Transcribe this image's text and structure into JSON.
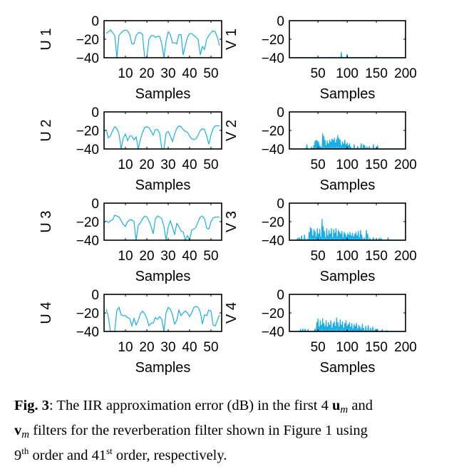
{
  "chart_data": [
    {
      "type": "line",
      "ylabel": "U 1",
      "xlabel": "Samples",
      "xlim": [
        0,
        55
      ],
      "ylim": [
        -40,
        0
      ],
      "xticks": [
        10,
        20,
        30,
        40,
        50
      ],
      "yticks": [
        0,
        -20,
        -40
      ],
      "color": "#1aaee5",
      "x_start": 1,
      "values": [
        -14,
        -12,
        -10,
        -13,
        -16,
        -40,
        -16,
        -13,
        -11,
        -10,
        -11,
        -15,
        -25,
        -25,
        -16,
        -13,
        -13,
        -15,
        -40,
        -40,
        -20,
        -16,
        -16,
        -18,
        -17,
        -17,
        -25,
        -40,
        -22,
        -12,
        -15,
        -24,
        -24,
        -25,
        -15,
        -15,
        -37,
        -27,
        -18,
        -14,
        -14,
        -16,
        -18,
        -20,
        -37,
        -28,
        -31,
        -20,
        -16,
        -13,
        -11,
        -12,
        -18,
        -27
      ]
    },
    {
      "type": "line",
      "ylabel": "V 1",
      "xlabel": "Samples",
      "xlim": [
        1,
        200
      ],
      "ylim": [
        -40,
        0
      ],
      "xticks": [
        50,
        100,
        150,
        200
      ],
      "yticks": [
        0,
        -20,
        -40
      ],
      "color": "#1aaee5",
      "points": [
        [
          90,
          -34
        ],
        [
          100,
          -36
        ]
      ]
    },
    {
      "type": "line",
      "ylabel": "U 2",
      "xlabel": "Samples",
      "xlim": [
        0,
        55
      ],
      "ylim": [
        -40,
        0
      ],
      "xticks": [
        10,
        20,
        30,
        40,
        50
      ],
      "yticks": [
        0,
        -20,
        -40
      ],
      "color": "#1aaee5",
      "x_start": 1,
      "values": [
        -19,
        -28,
        -26,
        -20,
        -16,
        -18,
        -24,
        -40,
        -28,
        -24,
        -31,
        -26,
        -26,
        -30,
        -27,
        -40,
        -30,
        -22,
        -17,
        -16,
        -17,
        -21,
        -25,
        -19,
        -19,
        -23,
        -40,
        -40,
        -23,
        -21,
        -26,
        -32,
        -24,
        -18,
        -15,
        -16,
        -19,
        -21,
        -22,
        -26,
        -29,
        -30,
        -29,
        -25,
        -20,
        -18,
        -19,
        -26,
        -35,
        -25,
        -18,
        -15,
        -15,
        -15
      ]
    },
    {
      "type": "line",
      "ylabel": "V 2",
      "xlabel": "Samples",
      "xlim": [
        1,
        200
      ],
      "ylim": [
        -40,
        0
      ],
      "xticks": [
        50,
        100,
        150,
        200
      ],
      "yticks": [
        0,
        -20,
        -40
      ],
      "color": "#1aaee5",
      "points": [
        [
          31,
          -35
        ],
        [
          39,
          -38
        ],
        [
          43,
          -36
        ],
        [
          45,
          -31
        ],
        [
          47,
          -30
        ],
        [
          49,
          -31
        ],
        [
          51,
          -32
        ],
        [
          53,
          -36
        ],
        [
          55,
          -38
        ],
        [
          58,
          -23
        ],
        [
          60,
          -26
        ],
        [
          62,
          -30
        ],
        [
          64,
          -36
        ],
        [
          66,
          -31
        ],
        [
          68,
          -34
        ],
        [
          70,
          -30
        ],
        [
          72,
          -32
        ],
        [
          74,
          -29
        ],
        [
          76,
          -30
        ],
        [
          78,
          -28
        ],
        [
          80,
          -33
        ],
        [
          82,
          -29
        ],
        [
          84,
          -25
        ],
        [
          86,
          -28
        ],
        [
          88,
          -30
        ],
        [
          90,
          -36
        ],
        [
          92,
          -32
        ],
        [
          94,
          -34
        ],
        [
          96,
          -30
        ],
        [
          98,
          -35
        ],
        [
          100,
          -33
        ],
        [
          102,
          -36
        ],
        [
          104,
          -34
        ],
        [
          106,
          -38
        ],
        [
          112,
          -35
        ],
        [
          118,
          -37
        ],
        [
          124,
          -34
        ],
        [
          128,
          -35
        ],
        [
          130,
          -36
        ],
        [
          134,
          -38
        ],
        [
          138,
          -37
        ],
        [
          145,
          -35
        ],
        [
          152,
          -36
        ]
      ]
    },
    {
      "type": "line",
      "ylabel": "U 3",
      "xlabel": "Samples",
      "xlim": [
        0,
        55
      ],
      "ylim": [
        -40,
        0
      ],
      "xticks": [
        10,
        20,
        30,
        40,
        50
      ],
      "yticks": [
        0,
        -20,
        -40
      ],
      "color": "#1aaee5",
      "x_start": 1,
      "values": [
        -19,
        -21,
        -19,
        -18,
        -13,
        -14,
        -15,
        -19,
        -23,
        -25,
        -20,
        -18,
        -18,
        -20,
        -40,
        -24,
        -21,
        -17,
        -14,
        -15,
        -19,
        -25,
        -33,
        -17,
        -14,
        -15,
        -17,
        -25,
        -40,
        -26,
        -19,
        -26,
        -34,
        -22,
        -25,
        -30,
        -31,
        -40,
        -35,
        -40,
        -29,
        -28,
        -26,
        -20,
        -15,
        -14,
        -17,
        -27,
        -28,
        -20,
        -16,
        -15,
        -15,
        -15
      ]
    },
    {
      "type": "line",
      "ylabel": "V 3",
      "xlabel": "Samples",
      "xlim": [
        1,
        200
      ],
      "ylim": [
        -40,
        0
      ],
      "xticks": [
        50,
        100,
        150,
        200
      ],
      "yticks": [
        0,
        -20,
        -40
      ],
      "color": "#1aaee5",
      "points": [
        [
          15,
          -38
        ],
        [
          18,
          -37
        ],
        [
          22,
          -35
        ],
        [
          27,
          -34
        ],
        [
          32,
          -39
        ],
        [
          35,
          -31
        ],
        [
          37,
          -26
        ],
        [
          39,
          -27
        ],
        [
          41,
          -35
        ],
        [
          43,
          -28
        ],
        [
          45,
          -30
        ],
        [
          47,
          -36
        ],
        [
          49,
          -27
        ],
        [
          51,
          -33
        ],
        [
          53,
          -28
        ],
        [
          55,
          -36
        ],
        [
          57,
          -17
        ],
        [
          59,
          -25
        ],
        [
          61,
          -30
        ],
        [
          63,
          -37
        ],
        [
          65,
          -27
        ],
        [
          67,
          -35
        ],
        [
          69,
          -29
        ],
        [
          71,
          -33
        ],
        [
          73,
          -27
        ],
        [
          75,
          -38
        ],
        [
          77,
          -28
        ],
        [
          79,
          -32
        ],
        [
          81,
          -27
        ],
        [
          83,
          -36
        ],
        [
          85,
          -29
        ],
        [
          87,
          -31
        ],
        [
          89,
          -33
        ],
        [
          91,
          -30
        ],
        [
          93,
          -37
        ],
        [
          95,
          -31
        ],
        [
          97,
          -33
        ],
        [
          99,
          -36
        ],
        [
          101,
          -32
        ],
        [
          103,
          -34
        ],
        [
          105,
          -31
        ],
        [
          107,
          -35
        ],
        [
          109,
          -32
        ],
        [
          111,
          -36
        ],
        [
          113,
          -33
        ],
        [
          115,
          -31
        ],
        [
          117,
          -35
        ],
        [
          119,
          -30
        ],
        [
          121,
          -38
        ],
        [
          123,
          -29
        ],
        [
          125,
          -34
        ],
        [
          129,
          -37
        ],
        [
          133,
          -29
        ],
        [
          135,
          -33
        ],
        [
          139,
          -38
        ],
        [
          145,
          -37
        ],
        [
          155,
          -38
        ],
        [
          158,
          -38
        ],
        [
          170,
          -37
        ]
      ]
    },
    {
      "type": "line",
      "ylabel": "U 4",
      "xlabel": "Samples",
      "xlim": [
        0,
        55
      ],
      "ylim": [
        -40,
        0
      ],
      "xticks": [
        10,
        20,
        30,
        40,
        50
      ],
      "yticks": [
        0,
        -20,
        -40
      ],
      "color": "#1aaee5",
      "x_start": 1,
      "values": [
        -16,
        -24,
        -40,
        -40,
        -40,
        -17,
        -14,
        -22,
        -23,
        -23,
        -25,
        -26,
        -34,
        -26,
        -33,
        -28,
        -21,
        -18,
        -21,
        -26,
        -34,
        -31,
        -31,
        -25,
        -27,
        -24,
        -27,
        -40,
        -20,
        -14,
        -16,
        -22,
        -32,
        -28,
        -17,
        -23,
        -20,
        -18,
        -20,
        -24,
        -20,
        -14,
        -13,
        -14,
        -19,
        -32,
        -22,
        -23,
        -17,
        -18,
        -33,
        -34,
        -28,
        -22
      ]
    },
    {
      "type": "line",
      "ylabel": "V 4",
      "xlabel": "Samples",
      "xlim": [
        1,
        200
      ],
      "ylim": [
        -40,
        0
      ],
      "xticks": [
        50,
        100,
        150,
        200
      ],
      "yticks": [
        0,
        -20,
        -40
      ],
      "color": "#1aaee5",
      "points": [
        [
          20,
          -38
        ],
        [
          24,
          -37
        ],
        [
          28,
          -37
        ],
        [
          33,
          -38
        ],
        [
          45,
          -37
        ],
        [
          48,
          -30
        ],
        [
          50,
          -26
        ],
        [
          52,
          -35
        ],
        [
          54,
          -28
        ],
        [
          56,
          -33
        ],
        [
          58,
          -26
        ],
        [
          60,
          -31
        ],
        [
          62,
          -34
        ],
        [
          64,
          -28
        ],
        [
          66,
          -35
        ],
        [
          68,
          -30
        ],
        [
          70,
          -33
        ],
        [
          72,
          -28
        ],
        [
          74,
          -36
        ],
        [
          76,
          -31
        ],
        [
          78,
          -29
        ],
        [
          80,
          -34
        ],
        [
          82,
          -25
        ],
        [
          84,
          -30
        ],
        [
          86,
          -35
        ],
        [
          88,
          -27
        ],
        [
          90,
          -33
        ],
        [
          92,
          -29
        ],
        [
          94,
          -36
        ],
        [
          96,
          -31
        ],
        [
          98,
          -28
        ],
        [
          100,
          -34
        ],
        [
          102,
          -32
        ],
        [
          104,
          -30
        ],
        [
          106,
          -35
        ],
        [
          108,
          -31
        ],
        [
          110,
          -37
        ],
        [
          112,
          -32
        ],
        [
          114,
          -34
        ],
        [
          116,
          -31
        ],
        [
          118,
          -37
        ],
        [
          120,
          -33
        ],
        [
          122,
          -35
        ],
        [
          124,
          -38
        ],
        [
          126,
          -32
        ],
        [
          128,
          -36
        ],
        [
          132,
          -34
        ],
        [
          136,
          -33
        ],
        [
          140,
          -36
        ],
        [
          144,
          -35
        ],
        [
          148,
          -38
        ],
        [
          152,
          -37
        ],
        [
          160,
          -38
        ],
        [
          168,
          -39
        ]
      ]
    }
  ],
  "caption": {
    "label": "Fig. 3",
    "text1": ": The IIR approximation error (dB) in the first 4 ",
    "u": "u",
    "m1": "m",
    "text2": " and",
    "v": "v",
    "m2": "m",
    "text3": " filters for the reverberation filter shown in Figure 1 using ",
    "n1": "9",
    "sup1": "th",
    "text4": " order and 41",
    "sup2": "st",
    "text5": " order, respectively."
  }
}
